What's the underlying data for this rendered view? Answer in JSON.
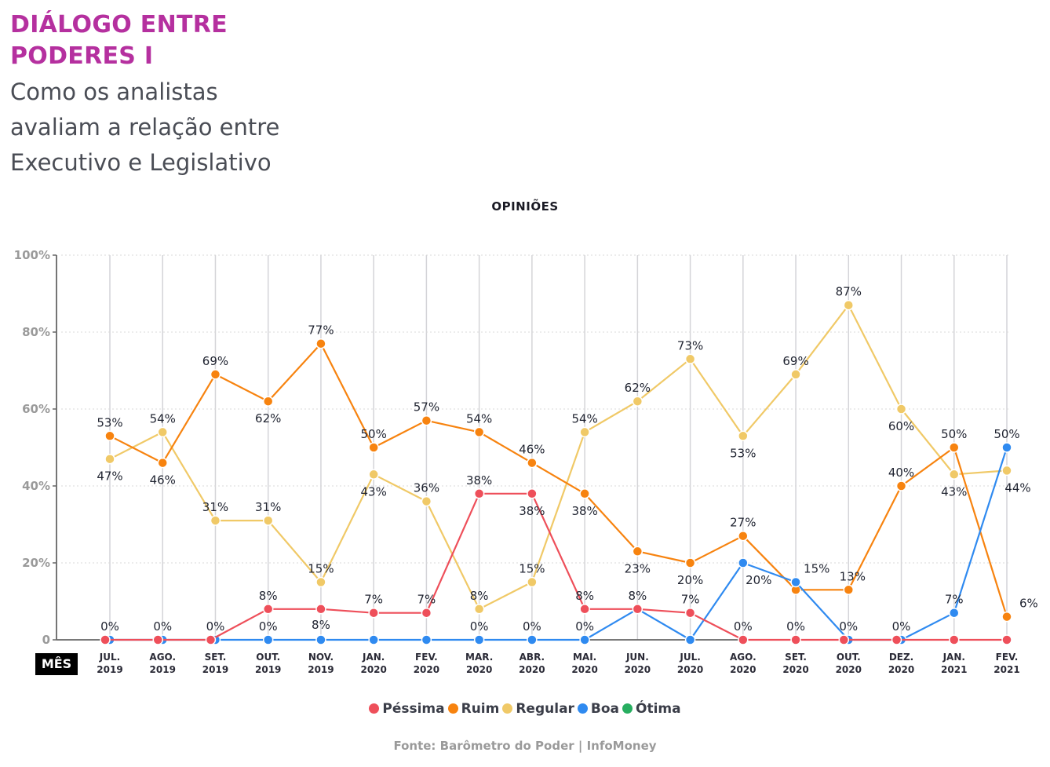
{
  "header": {
    "title_line1": "DIÁLOGO ENTRE",
    "title_line2": "PODERES I",
    "subtitle_line1": "Como os analistas",
    "subtitle_line2": "avaliam a relação entre",
    "subtitle_line3": "Executivo e Legislativo"
  },
  "x_axis_badge": "MÊS",
  "source": "Fonte: Barômetro do Poder | InfoMoney",
  "colors": {
    "title": "#b5309f",
    "pessima": "#ee4f5a",
    "ruim": "#f7830f",
    "regular": "#f0c967",
    "boa": "#2f8af0",
    "otima": "#27ae60"
  },
  "chart_data": {
    "type": "line",
    "title": "OPINIÕES",
    "xlabel": "MÊS",
    "ylabel": "",
    "ylim": [
      0,
      100
    ],
    "yticks": [
      "0",
      "20%",
      "40%",
      "60%",
      "80%",
      "100%"
    ],
    "ytick_values": [
      0,
      20,
      40,
      60,
      80,
      100
    ],
    "grid": true,
    "legend_position": "bottom-center",
    "categories": [
      [
        "JUL.",
        "2019"
      ],
      [
        "AGO.",
        "2019"
      ],
      [
        "SET.",
        "2019"
      ],
      [
        "OUT.",
        "2019"
      ],
      [
        "NOV.",
        "2019"
      ],
      [
        "JAN.",
        "2020"
      ],
      [
        "FEV.",
        "2020"
      ],
      [
        "MAR.",
        "2020"
      ],
      [
        "ABR.",
        "2020"
      ],
      [
        "MAI.",
        "2020"
      ],
      [
        "JUN.",
        "2020"
      ],
      [
        "JUL.",
        "2020"
      ],
      [
        "AGO.",
        "2020"
      ],
      [
        "SET.",
        "2020"
      ],
      [
        "OUT.",
        "2020"
      ],
      [
        "DEZ.",
        "2020"
      ],
      [
        "JAN.",
        "2021"
      ],
      [
        "FEV.",
        "2021"
      ]
    ],
    "series": [
      {
        "name": "Péssima",
        "key": "pessima",
        "values": [
          0,
          0,
          0,
          8,
          8,
          7,
          7,
          38,
          38,
          8,
          8,
          7,
          0,
          0,
          0,
          0,
          0,
          0
        ]
      },
      {
        "name": "Ruim",
        "key": "ruim",
        "values": [
          53,
          46,
          69,
          62,
          77,
          50,
          57,
          54,
          46,
          38,
          23,
          20,
          27,
          13,
          13,
          40,
          50,
          6
        ]
      },
      {
        "name": "Regular",
        "key": "regular",
        "values": [
          47,
          54,
          31,
          31,
          15,
          43,
          36,
          8,
          15,
          54,
          62,
          73,
          53,
          69,
          87,
          60,
          43,
          44
        ]
      },
      {
        "name": "Boa",
        "key": "boa",
        "values": [
          0,
          0,
          0,
          0,
          0,
          0,
          0,
          0,
          0,
          0,
          8,
          0,
          20,
          15,
          0,
          0,
          7,
          50
        ]
      },
      {
        "name": "Ótima",
        "key": "otima",
        "values": []
      }
    ],
    "data_labels": [
      {
        "series": "boa",
        "index": 0,
        "text": "0%"
      },
      {
        "series": "ruim",
        "index": 0,
        "text": "53%"
      },
      {
        "series": "regular",
        "index": 0,
        "text": "47%"
      },
      {
        "series": "boa",
        "index": 1,
        "text": "0%"
      },
      {
        "series": "regular",
        "index": 1,
        "text": "54%"
      },
      {
        "series": "ruim",
        "index": 1,
        "text": "46%"
      },
      {
        "series": "boa",
        "index": 2,
        "text": "0%"
      },
      {
        "series": "ruim",
        "index": 2,
        "text": "69%"
      },
      {
        "series": "regular",
        "index": 2,
        "text": "31%"
      },
      {
        "series": "boa",
        "index": 3,
        "text": "0%"
      },
      {
        "series": "pessima",
        "index": 3,
        "text": "8%"
      },
      {
        "series": "ruim",
        "index": 3,
        "text": "62%"
      },
      {
        "series": "regular",
        "index": 3,
        "text": "31%"
      },
      {
        "series": "pessima",
        "index": 4,
        "text": "8%"
      },
      {
        "series": "ruim",
        "index": 4,
        "text": "77%"
      },
      {
        "series": "regular",
        "index": 4,
        "text": "15%"
      },
      {
        "series": "pessima",
        "index": 5,
        "text": "7%"
      },
      {
        "series": "ruim",
        "index": 5,
        "text": "50%"
      },
      {
        "series": "regular",
        "index": 5,
        "text": "43%"
      },
      {
        "series": "pessima",
        "index": 6,
        "text": "7%"
      },
      {
        "series": "ruim",
        "index": 6,
        "text": "57%"
      },
      {
        "series": "regular",
        "index": 6,
        "text": "36%"
      },
      {
        "series": "boa",
        "index": 7,
        "text": "0%"
      },
      {
        "series": "pessima",
        "index": 7,
        "text": "38%"
      },
      {
        "series": "ruim",
        "index": 7,
        "text": "54%"
      },
      {
        "series": "regular",
        "index": 7,
        "text": "8%"
      },
      {
        "series": "boa",
        "index": 8,
        "text": "0%"
      },
      {
        "series": "pessima",
        "index": 8,
        "text": "38%"
      },
      {
        "series": "ruim",
        "index": 8,
        "text": "46%"
      },
      {
        "series": "regular",
        "index": 8,
        "text": "15%"
      },
      {
        "series": "boa",
        "index": 9,
        "text": "0%"
      },
      {
        "series": "pessima",
        "index": 9,
        "text": "8%"
      },
      {
        "series": "ruim",
        "index": 9,
        "text": "38%"
      },
      {
        "series": "regular",
        "index": 9,
        "text": "54%"
      },
      {
        "series": "pessima",
        "index": 10,
        "text": "8%"
      },
      {
        "series": "ruim",
        "index": 10,
        "text": "23%"
      },
      {
        "series": "regular",
        "index": 10,
        "text": "62%"
      },
      {
        "series": "pessima",
        "index": 11,
        "text": "7%"
      },
      {
        "series": "ruim",
        "index": 11,
        "text": "20%"
      },
      {
        "series": "regular",
        "index": 11,
        "text": "73%"
      },
      {
        "series": "pessima",
        "index": 12,
        "text": "0%"
      },
      {
        "series": "boa",
        "index": 12,
        "text": "20%"
      },
      {
        "series": "ruim",
        "index": 12,
        "text": "27%"
      },
      {
        "series": "regular",
        "index": 12,
        "text": "53%"
      },
      {
        "series": "pessima",
        "index": 13,
        "text": "0%"
      },
      {
        "series": "boa",
        "index": 13,
        "text": "15%"
      },
      {
        "series": "regular",
        "index": 13,
        "text": "69%"
      },
      {
        "series": "boa",
        "index": 14,
        "text": "0%"
      },
      {
        "series": "ruim",
        "index": 14,
        "text": "13%"
      },
      {
        "series": "regular",
        "index": 14,
        "text": "87%"
      },
      {
        "series": "boa",
        "index": 15,
        "text": "0%"
      },
      {
        "series": "ruim",
        "index": 15,
        "text": "40%"
      },
      {
        "series": "regular",
        "index": 15,
        "text": "60%"
      },
      {
        "series": "boa",
        "index": 16,
        "text": "7%"
      },
      {
        "series": "ruim",
        "index": 16,
        "text": "50%"
      },
      {
        "series": "regular",
        "index": 16,
        "text": "43%"
      },
      {
        "series": "boa",
        "index": 17,
        "text": "50%"
      },
      {
        "series": "regular",
        "index": 17,
        "text": "44%"
      },
      {
        "series": "ruim",
        "index": 17,
        "text": "6%"
      }
    ]
  }
}
